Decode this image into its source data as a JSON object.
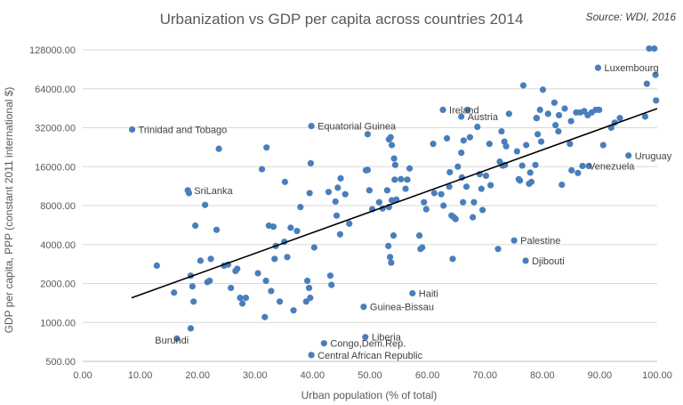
{
  "chart_data": {
    "type": "scatter",
    "title": "Urbanization vs GDP per capita across countries 2014",
    "source": "Source: WDI, 2016",
    "xlabel": "Urban population (% of total)",
    "ylabel": "GDP per capita, PPP (constant 2011 international $)",
    "xlim": [
      0,
      100
    ],
    "x_ticks": [
      "0.00",
      "10.00",
      "20.00",
      "30.00",
      "40.00",
      "50.00",
      "60.00",
      "70.00",
      "80.00",
      "90.00",
      "100.00"
    ],
    "y_scale": "log2",
    "ylim": [
      500,
      128000
    ],
    "y_ticks": [
      "500.00",
      "1000.00",
      "2000.00",
      "4000.00",
      "8000.00",
      "16000.00",
      "32000.00",
      "64000.00",
      "128000.00"
    ],
    "grid": "horizontal",
    "marker_color": "#4a7ebb",
    "trendline": {
      "type": "exponential",
      "color": "#000000",
      "x": [
        8.5,
        100
      ],
      "y": [
        1550,
        45000
      ]
    },
    "annotations": [
      {
        "text": "Trinidad and Tobago",
        "x": 8.6,
        "y": 31000
      },
      {
        "text": "SriLanka",
        "x": 18.3,
        "y": 10500
      },
      {
        "text": "Burundi",
        "x": 11.5,
        "y": 730
      },
      {
        "text": "Equatorial Guinea",
        "x": 39.8,
        "y": 33000
      },
      {
        "text": "Ireland",
        "x": 62.7,
        "y": 44000
      },
      {
        "text": "Austria",
        "x": 65.9,
        "y": 39000
      },
      {
        "text": "Luxembourg",
        "x": 89.7,
        "y": 93000
      },
      {
        "text": "Uruguay",
        "x": 95.0,
        "y": 19500
      },
      {
        "text": "Venezuela",
        "x": 87.0,
        "y": 16200
      },
      {
        "text": "Palestine",
        "x": 75.1,
        "y": 4300
      },
      {
        "text": "Djibouti",
        "x": 77.1,
        "y": 3000
      },
      {
        "text": "Haiti",
        "x": 57.4,
        "y": 1680
      },
      {
        "text": "Guinea-Bissau",
        "x": 48.9,
        "y": 1320
      },
      {
        "text": "Liberia",
        "x": 49.2,
        "y": 770
      },
      {
        "text": "Congo,Dem.Rep.",
        "x": 42.0,
        "y": 690
      },
      {
        "text": "Central African Republic",
        "x": 39.8,
        "y": 560
      }
    ],
    "points": [
      [
        8.6,
        31000
      ],
      [
        12.9,
        2750
      ],
      [
        15.9,
        1700
      ],
      [
        16.4,
        750
      ],
      [
        18.3,
        10500
      ],
      [
        18.5,
        10000
      ],
      [
        18.8,
        2300
      ],
      [
        19.1,
        1900
      ],
      [
        18.8,
        900
      ],
      [
        19.3,
        1450
      ],
      [
        19.6,
        5600
      ],
      [
        20.5,
        3000
      ],
      [
        21.3,
        8100
      ],
      [
        21.7,
        2050
      ],
      [
        22.1,
        2100
      ],
      [
        22.3,
        3100
      ],
      [
        23.3,
        5200
      ],
      [
        23.7,
        22000
      ],
      [
        24.6,
        2750
      ],
      [
        25.3,
        2800
      ],
      [
        25.8,
        1850
      ],
      [
        26.6,
        2500
      ],
      [
        26.9,
        2600
      ],
      [
        27.4,
        1550
      ],
      [
        27.8,
        1400
      ],
      [
        28.4,
        1550
      ],
      [
        30.5,
        2400
      ],
      [
        31.2,
        15300
      ],
      [
        31.7,
        1100
      ],
      [
        31.9,
        2100
      ],
      [
        32.0,
        22500
      ],
      [
        32.4,
        5600
      ],
      [
        32.8,
        1750
      ],
      [
        33.2,
        5500
      ],
      [
        33.4,
        3100
      ],
      [
        33.6,
        3900
      ],
      [
        34.3,
        1450
      ],
      [
        35.1,
        4200
      ],
      [
        35.2,
        12200
      ],
      [
        35.6,
        3200
      ],
      [
        36.2,
        5400
      ],
      [
        36.7,
        1240
      ],
      [
        37.3,
        5100
      ],
      [
        37.9,
        7800
      ],
      [
        38.9,
        1450
      ],
      [
        39.1,
        2100
      ],
      [
        39.4,
        1850
      ],
      [
        39.5,
        10000
      ],
      [
        39.6,
        1550
      ],
      [
        39.7,
        17000
      ],
      [
        39.8,
        33000
      ],
      [
        39.8,
        560
      ],
      [
        40.3,
        3800
      ],
      [
        42.0,
        690
      ],
      [
        42.8,
        10200
      ],
      [
        43.1,
        2300
      ],
      [
        43.3,
        1950
      ],
      [
        44.0,
        8600
      ],
      [
        44.2,
        6700
      ],
      [
        44.4,
        11000
      ],
      [
        44.8,
        4800
      ],
      [
        44.9,
        13000
      ],
      [
        45.7,
        9800
      ],
      [
        46.4,
        5800
      ],
      [
        48.9,
        1320
      ],
      [
        49.2,
        770
      ],
      [
        49.3,
        15000
      ],
      [
        49.6,
        15100
      ],
      [
        49.6,
        28500
      ],
      [
        49.9,
        10500
      ],
      [
        50.4,
        7500
      ],
      [
        51.6,
        8500
      ],
      [
        52.2,
        7600
      ],
      [
        53.0,
        10500
      ],
      [
        53.2,
        3900
      ],
      [
        53.3,
        26000
      ],
      [
        53.3,
        7800
      ],
      [
        53.5,
        3200
      ],
      [
        53.6,
        27000
      ],
      [
        53.7,
        2900
      ],
      [
        53.8,
        8800
      ],
      [
        53.8,
        23500
      ],
      [
        54.1,
        4700
      ],
      [
        54.2,
        18500
      ],
      [
        54.3,
        12700
      ],
      [
        54.4,
        16500
      ],
      [
        54.6,
        8900
      ],
      [
        55.4,
        12800
      ],
      [
        56.2,
        10800
      ],
      [
        56.5,
        12700
      ],
      [
        56.9,
        15500
      ],
      [
        57.4,
        1680
      ],
      [
        58.6,
        4700
      ],
      [
        58.8,
        3700
      ],
      [
        59.1,
        3800
      ],
      [
        59.4,
        8500
      ],
      [
        59.8,
        7500
      ],
      [
        61.0,
        24000
      ],
      [
        61.2,
        10000
      ],
      [
        62.4,
        9800
      ],
      [
        62.7,
        44000
      ],
      [
        62.8,
        8000
      ],
      [
        63.4,
        26500
      ],
      [
        63.8,
        11200
      ],
      [
        63.9,
        14500
      ],
      [
        64.2,
        6700
      ],
      [
        64.4,
        3100
      ],
      [
        64.6,
        6500
      ],
      [
        64.9,
        6300
      ],
      [
        65.3,
        16000
      ],
      [
        65.9,
        39000
      ],
      [
        65.9,
        20500
      ],
      [
        66.0,
        13200
      ],
      [
        66.2,
        8500
      ],
      [
        66.3,
        25500
      ],
      [
        66.8,
        11200
      ],
      [
        67.0,
        44000
      ],
      [
        67.4,
        27000
      ],
      [
        67.9,
        6500
      ],
      [
        68.1,
        8500
      ],
      [
        68.7,
        32500
      ],
      [
        69.1,
        14000
      ],
      [
        69.4,
        10800
      ],
      [
        69.6,
        7400
      ],
      [
        70.2,
        13600
      ],
      [
        70.8,
        24000
      ],
      [
        71.0,
        11500
      ],
      [
        72.3,
        3700
      ],
      [
        72.6,
        17500
      ],
      [
        72.9,
        30000
      ],
      [
        73.1,
        16300
      ],
      [
        73.4,
        25000
      ],
      [
        73.5,
        16500
      ],
      [
        73.7,
        23000
      ],
      [
        74.2,
        41000
      ],
      [
        75.1,
        4300
      ],
      [
        75.6,
        21000
      ],
      [
        75.9,
        12800
      ],
      [
        76.1,
        12500
      ],
      [
        76.5,
        16300
      ],
      [
        76.7,
        68000
      ],
      [
        77.1,
        3000
      ],
      [
        77.2,
        23500
      ],
      [
        77.7,
        11800
      ],
      [
        77.9,
        14400
      ],
      [
        78.1,
        12200
      ],
      [
        78.8,
        16500
      ],
      [
        79.0,
        38000
      ],
      [
        79.0,
        38000
      ],
      [
        79.2,
        28500
      ],
      [
        79.6,
        44000
      ],
      [
        79.8,
        25000
      ],
      [
        80.1,
        63000
      ],
      [
        81.0,
        41000
      ],
      [
        82.1,
        50000
      ],
      [
        82.3,
        33500
      ],
      [
        82.8,
        30000
      ],
      [
        82.9,
        40000
      ],
      [
        83.4,
        11600
      ],
      [
        83.9,
        45000
      ],
      [
        84.8,
        24000
      ],
      [
        85.0,
        36000
      ],
      [
        85.1,
        15000
      ],
      [
        85.9,
        42000
      ],
      [
        86.2,
        14300
      ],
      [
        86.6,
        42000
      ],
      [
        87.0,
        16200
      ],
      [
        87.3,
        43000
      ],
      [
        87.9,
        40000
      ],
      [
        88.1,
        16200
      ],
      [
        88.6,
        42000
      ],
      [
        89.3,
        44000
      ],
      [
        89.7,
        93000
      ],
      [
        89.9,
        44000
      ],
      [
        90.6,
        23500
      ],
      [
        92.0,
        32000
      ],
      [
        92.6,
        35000
      ],
      [
        93.5,
        38000
      ],
      [
        95.0,
        19500
      ],
      [
        97.9,
        39000
      ],
      [
        98.2,
        70000
      ],
      [
        98.6,
        131000
      ],
      [
        99.5,
        131000
      ],
      [
        99.7,
        82000
      ],
      [
        99.8,
        52000
      ]
    ]
  }
}
